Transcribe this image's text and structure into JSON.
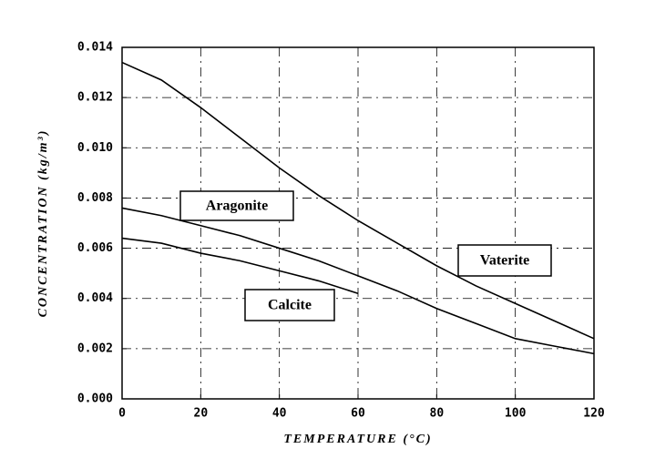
{
  "chart_data": {
    "type": "line",
    "x_label": "TEMPERATURE (°C)",
    "y_label": "CONCENTRATION (kg/m³)",
    "x": [
      0,
      10,
      20,
      30,
      40,
      50,
      60,
      70,
      80,
      90,
      100,
      110,
      120
    ],
    "series": [
      {
        "name": "Vaterite",
        "color": "#000000",
        "values": [
          0.0134,
          0.0127,
          0.0116,
          0.0104,
          0.0092,
          0.0081,
          0.0071,
          0.0062,
          0.0053,
          0.0045,
          0.0038,
          0.0031,
          0.0024
        ]
      },
      {
        "name": "Aragonite",
        "color": "#000000",
        "values": [
          0.0076,
          0.0073,
          0.0069,
          0.0065,
          0.006,
          0.0055,
          0.0049,
          0.0043,
          0.0036,
          0.003,
          0.0024,
          0.0021,
          0.0018
        ]
      },
      {
        "name": "Calcite",
        "color": "#000000",
        "values": [
          0.0064,
          0.0062,
          0.0058,
          0.0055,
          0.0051,
          0.0047,
          0.0042,
          null,
          null,
          null,
          null,
          null,
          null
        ]
      }
    ],
    "xlim": [
      0,
      120
    ],
    "xticks": [
      0,
      20,
      40,
      60,
      80,
      100,
      120
    ],
    "ylim": [
      0,
      0.014
    ],
    "yticks": [
      {
        "value": 0,
        "label": "0.000"
      },
      {
        "value": 0.002,
        "label": "0.002"
      },
      {
        "value": 0.004,
        "label": "0.004"
      },
      {
        "value": 0.006,
        "label": "0.006"
      },
      {
        "value": 0.008,
        "label": "0.008"
      },
      {
        "value": 0.01,
        "label": "0.010"
      },
      {
        "value": 0.012,
        "label": "0.012"
      },
      {
        "value": 0.014,
        "label": "0.014"
      }
    ],
    "grid": true
  }
}
